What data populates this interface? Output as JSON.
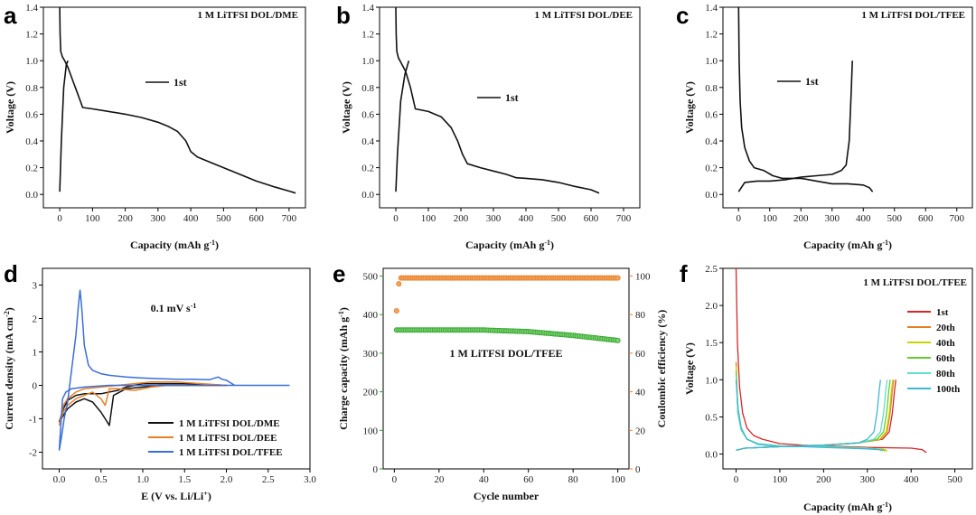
{
  "chart_data": [
    {
      "panel": "a",
      "type": "line",
      "title": "1 M LiTFSI DOL/DME",
      "xlabel": "Capacity (mAh g",
      "xlabel_sup": "-1",
      "xlabel_end": ")",
      "ylabel": "Voltage (V)",
      "xlim": [
        -50,
        750
      ],
      "ylim": [
        -0.1,
        1.4
      ],
      "xticks": [
        0,
        100,
        200,
        300,
        400,
        500,
        600,
        700
      ],
      "yticks": [
        0.0,
        0.2,
        0.4,
        0.6,
        0.8,
        1.0,
        1.2,
        1.4
      ],
      "legend": [
        "1st"
      ],
      "series": [
        {
          "name": "1st discharge",
          "color": "#111111",
          "x": [
            0,
            1,
            3,
            8,
            15,
            25,
            40,
            55,
            70,
            100,
            150,
            200,
            250,
            300,
            330,
            360,
            385,
            400,
            420,
            450,
            500,
            550,
            600,
            650,
            700,
            720
          ],
          "y": [
            1.4,
            1.2,
            1.07,
            1.03,
            1.0,
            0.95,
            0.85,
            0.75,
            0.65,
            0.64,
            0.62,
            0.6,
            0.575,
            0.54,
            0.51,
            0.47,
            0.4,
            0.32,
            0.28,
            0.25,
            0.2,
            0.15,
            0.1,
            0.06,
            0.025,
            0.01
          ]
        },
        {
          "name": "1st charge",
          "color": "#111111",
          "x": [
            0,
            5,
            12,
            20,
            25
          ],
          "y": [
            0.02,
            0.4,
            0.8,
            0.97,
            1.0
          ]
        }
      ]
    },
    {
      "panel": "b",
      "type": "line",
      "title": "1 M LiTFSI DOL/DEE",
      "xlabel": "Capacity (mAh g",
      "xlabel_sup": "-1",
      "xlabel_end": ")",
      "ylabel": "Voltage (V)",
      "xlim": [
        -50,
        750
      ],
      "ylim": [
        -0.1,
        1.4
      ],
      "xticks": [
        0,
        100,
        200,
        300,
        400,
        500,
        600,
        700
      ],
      "yticks": [
        0.0,
        0.2,
        0.4,
        0.6,
        0.8,
        1.0,
        1.2,
        1.4
      ],
      "legend": [
        "1st"
      ],
      "series": [
        {
          "name": "1st discharge",
          "color": "#111111",
          "x": [
            0,
            1,
            3,
            8,
            15,
            30,
            45,
            60,
            100,
            140,
            170,
            190,
            205,
            220,
            260,
            300,
            340,
            370,
            400,
            450,
            500,
            550,
            600,
            625
          ],
          "y": [
            1.4,
            1.2,
            1.07,
            1.02,
            0.99,
            0.92,
            0.8,
            0.64,
            0.62,
            0.58,
            0.5,
            0.4,
            0.3,
            0.23,
            0.2,
            0.175,
            0.15,
            0.125,
            0.12,
            0.11,
            0.09,
            0.06,
            0.035,
            0.01
          ]
        },
        {
          "name": "1st charge",
          "color": "#111111",
          "x": [
            0,
            5,
            15,
            28,
            40
          ],
          "y": [
            0.02,
            0.3,
            0.7,
            0.9,
            1.0
          ]
        }
      ]
    },
    {
      "panel": "c",
      "type": "line",
      "title": "1 M LiTFSI DOL/TFEE",
      "xlabel": "Capacity (mAh g",
      "xlabel_sup": "-1",
      "xlabel_end": ")",
      "ylabel": "Voltage (V)",
      "xlim": [
        -50,
        750
      ],
      "ylim": [
        -0.1,
        1.4
      ],
      "xticks": [
        0,
        100,
        200,
        300,
        400,
        500,
        600,
        700
      ],
      "yticks": [
        0.0,
        0.2,
        0.4,
        0.6,
        0.8,
        1.0,
        1.2,
        1.4
      ],
      "legend": [
        "1st"
      ],
      "series": [
        {
          "name": "1st discharge",
          "color": "#111111",
          "x": [
            0,
            2,
            5,
            10,
            20,
            35,
            50,
            80,
            110,
            140,
            170,
            200,
            250,
            300,
            350,
            400,
            420,
            430
          ],
          "y": [
            1.4,
            1.0,
            0.7,
            0.5,
            0.35,
            0.25,
            0.2,
            0.18,
            0.14,
            0.12,
            0.12,
            0.12,
            0.1,
            0.08,
            0.08,
            0.07,
            0.05,
            0.02
          ]
        },
        {
          "name": "1st charge",
          "color": "#111111",
          "x": [
            0,
            20,
            60,
            100,
            150,
            200,
            250,
            300,
            330,
            345,
            355,
            362,
            365
          ],
          "y": [
            0.02,
            0.09,
            0.1,
            0.1,
            0.11,
            0.13,
            0.14,
            0.15,
            0.18,
            0.22,
            0.4,
            0.8,
            1.0
          ]
        }
      ]
    },
    {
      "panel": "d",
      "type": "line",
      "title": "",
      "xlabel": "E (V vs. Li/Li",
      "xlabel_sup": "+",
      "xlabel_end": ")",
      "ylabel": "Current density (mA cm",
      "ylabel_sup": "-2",
      "ylabel_end": ")",
      "xlim": [
        -0.2,
        3.0
      ],
      "ylim": [
        -2.5,
        3.5
      ],
      "xticks": [
        0.0,
        0.5,
        1.0,
        1.5,
        2.0,
        2.5,
        3.0
      ],
      "yticks": [
        -2,
        -1,
        0,
        1,
        2,
        3
      ],
      "annotation": "0.1 mV s",
      "annotation_sup": "-1",
      "legend": [
        "1 M LiTFSI DOL/DME",
        "1 M LiTFSI DOL/DEE",
        "1 M LiTFSI DOL/TFEE"
      ],
      "series": [
        {
          "name": "1 M LiTFSI DOL/DME",
          "color": "#111111",
          "x": [
            0,
            0.05,
            0.1,
            0.2,
            0.3,
            0.4,
            0.5,
            0.55,
            0.6,
            0.65,
            0.8,
            1.0,
            1.2,
            1.5,
            1.8,
            2.0,
            1.8,
            1.5,
            1.2,
            1.0,
            0.8,
            0.7,
            0.6,
            0.5,
            0.3,
            0.2,
            0.1,
            0.05,
            0
          ],
          "y": [
            -1.1,
            -0.9,
            -0.7,
            -0.5,
            -0.4,
            -0.5,
            -0.8,
            -1.0,
            -1.2,
            -0.3,
            -0.1,
            -0.05,
            0,
            0,
            0,
            0,
            0.02,
            0.05,
            0.05,
            0.05,
            -0.05,
            -0.15,
            -0.2,
            -0.25,
            -0.25,
            -0.3,
            -0.45,
            -0.7,
            -1.1
          ]
        },
        {
          "name": "1 M LiTFSI DOL/DEE",
          "color": "#e8802a",
          "x": [
            0,
            0.05,
            0.1,
            0.2,
            0.3,
            0.4,
            0.5,
            0.55,
            0.6,
            0.7,
            0.9,
            1.1,
            1.3,
            1.6,
            1.8,
            2.0,
            1.7,
            1.4,
            1.1,
            0.9,
            0.7,
            0.5,
            0.3,
            0.2,
            0.1,
            0.05,
            0
          ],
          "y": [
            -1.2,
            -0.8,
            -0.6,
            -0.4,
            -0.3,
            -0.2,
            -0.4,
            -0.6,
            -0.1,
            -0.1,
            -0.15,
            -0.05,
            0,
            0,
            0,
            0,
            0.05,
            0.1,
            0.1,
            0.05,
            0,
            -0.05,
            -0.1,
            -0.2,
            -0.4,
            -0.6,
            -1.2
          ]
        },
        {
          "name": "1 M LiTFSI DOL/TFEE",
          "color": "#3a6fd8",
          "x": [
            0,
            0.03,
            0.06,
            0.1,
            0.15,
            0.2,
            0.23,
            0.25,
            0.27,
            0.3,
            0.35,
            0.4,
            0.5,
            0.6,
            0.8,
            1.0,
            1.2,
            1.4,
            1.6,
            1.8,
            1.9,
            1.95,
            2.0,
            2.1,
            2.3,
            2.5,
            2.7,
            2.75,
            2.4,
            2.0,
            1.5,
            1.0,
            0.6,
            0.3,
            0.15,
            0.08,
            0.04,
            0
          ],
          "y": [
            -1.95,
            -1.5,
            -1.0,
            -0.5,
            0.5,
            1.5,
            2.4,
            2.85,
            2.3,
            1.2,
            0.6,
            0.45,
            0.35,
            0.3,
            0.25,
            0.22,
            0.2,
            0.18,
            0.18,
            0.17,
            0.25,
            0.18,
            0.15,
            0,
            0,
            0,
            0,
            0,
            0,
            0,
            0,
            0,
            0,
            -0.05,
            -0.1,
            -0.2,
            -0.4,
            -1.95
          ]
        }
      ]
    },
    {
      "panel": "e",
      "type": "scatter",
      "title": "1 M LiTFSI DOL/TFEE",
      "xlabel": "Cycle number",
      "ylabel": "Charge capacity (mAh g",
      "ylabel_sup": "-1",
      "ylabel_end": ")",
      "y2label": "Coulombic efficiency (%)",
      "xlim": [
        -5,
        105
      ],
      "ylim": [
        0,
        520
      ],
      "y2lim": [
        0,
        104
      ],
      "xticks": [
        0,
        20,
        40,
        60,
        80,
        100
      ],
      "yticks": [
        0,
        100,
        200,
        300,
        400,
        500
      ],
      "y2ticks": [
        0,
        20,
        40,
        60,
        80,
        100
      ],
      "series": [
        {
          "name": "Charge capacity",
          "axis": "left",
          "color": "#2ca02c",
          "x_start": 1,
          "x_end": 100,
          "y_points": [
            [
              1,
              360
            ],
            [
              40,
              360
            ],
            [
              60,
              356
            ],
            [
              80,
              346
            ],
            [
              100,
              333
            ]
          ]
        },
        {
          "name": "Coulombic efficiency",
          "axis": "right",
          "color": "#e87e23",
          "x_start": 1,
          "x_end": 100,
          "first_value": 82,
          "second_value": 96,
          "steady_value": 99
        }
      ]
    },
    {
      "panel": "f",
      "type": "line",
      "title": "1 M LiTFSI DOL/TFEE",
      "xlabel": "Capacity (mAh g",
      "xlabel_sup": "-1",
      "xlabel_end": ")",
      "ylabel": "Voltage (V)",
      "xlim": [
        -30,
        540
      ],
      "ylim": [
        -0.2,
        2.5
      ],
      "xticks": [
        0,
        100,
        200,
        300,
        400,
        500
      ],
      "yticks": [
        0.0,
        0.5,
        1.0,
        1.5,
        2.0,
        2.5
      ],
      "legend": [
        "1st",
        "20th",
        "40th",
        "60th",
        "80th",
        "100th"
      ],
      "series": [
        {
          "name": "1st",
          "color": "#d62728",
          "dis_x": [
            0,
            3,
            8,
            15,
            25,
            40,
            60,
            100,
            150,
            200,
            300,
            400,
            425,
            435
          ],
          "dis_y": [
            2.5,
            1.5,
            0.9,
            0.55,
            0.35,
            0.25,
            0.2,
            0.14,
            0.12,
            0.11,
            0.09,
            0.08,
            0.06,
            0.02
          ],
          "cha_end": 365
        },
        {
          "name": "20th",
          "color": "#e87e23",
          "dis_end": 345,
          "cha_end": 360
        },
        {
          "name": "40th",
          "color": "#c8d400",
          "dis_end": 345,
          "cha_end": 358
        },
        {
          "name": "60th",
          "color": "#66cc33",
          "dis_end": 340,
          "cha_end": 352
        },
        {
          "name": "80th",
          "color": "#5fe0c8",
          "dis_end": 335,
          "cha_end": 345
        },
        {
          "name": "100th",
          "color": "#3fb6d6",
          "dis_x": [
            0,
            5,
            12,
            25,
            50,
            100,
            150,
            200,
            250,
            300,
            325,
            333
          ],
          "dis_y": [
            1.0,
            0.6,
            0.35,
            0.2,
            0.13,
            0.1,
            0.1,
            0.09,
            0.08,
            0.07,
            0.06,
            0.05
          ],
          "cha_end": 330
        }
      ]
    }
  ]
}
